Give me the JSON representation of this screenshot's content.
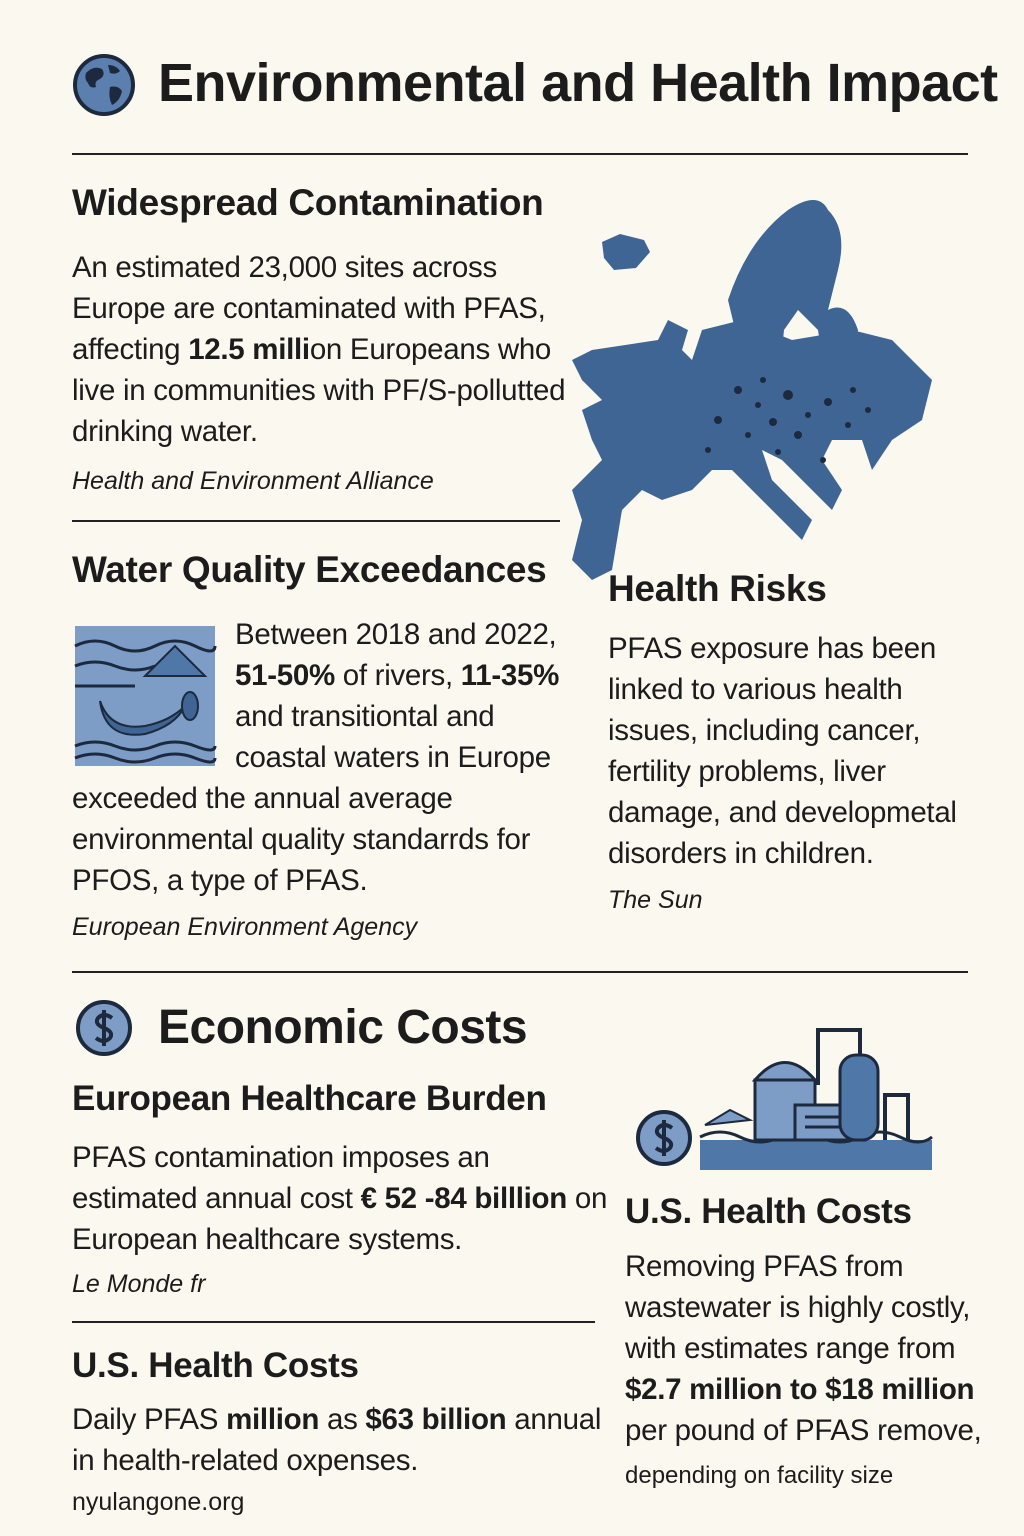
{
  "header": {
    "title": "Environmental and Health Impact"
  },
  "contamination": {
    "title": "Widespread Contamination",
    "body": [
      {
        "text": "An estimated 23,000 sites across Europe are contaminated with PFAS, affecting ",
        "bold": false
      },
      {
        "text": "12.5 milli",
        "bold": true
      },
      {
        "text": "on Europeans who live in communities with PF/S-pollutted drinking water.",
        "bold": false
      }
    ],
    "source": "Health and Environment Alliance"
  },
  "water": {
    "title": "Water Quality Exceedances",
    "body": [
      {
        "text": "Between 2018 and 2022, ",
        "bold": false
      },
      {
        "text": "51-50%",
        "bold": true
      },
      {
        "text": " of rivers, ",
        "bold": false
      },
      {
        "text": "11-35%",
        "bold": true
      },
      {
        "text": " and transitiontal and coastal waters in Europe exceeded the annual average environmental quality standarrds for PFOS, a type of PFAS.",
        "bold": false
      }
    ],
    "source": "European Environment Agency"
  },
  "health": {
    "title": "Health Risks",
    "body": [
      {
        "text": "PFAS exposure has been linked to various health issues, including cancer, fertility problems, liver damage, and developmetal disorders in children.",
        "bold": false
      }
    ],
    "source": "The Sun"
  },
  "economic": {
    "title": "Economic Costs"
  },
  "eu_burden": {
    "title": "European Healthcare Burden",
    "body": [
      {
        "text": "PFAS contamination imposes an estimated annual cost ",
        "bold": false
      },
      {
        "text": "€ 52 -84 billlion",
        "bold": true
      },
      {
        "text": " on European healthcare systems.",
        "bold": false
      }
    ],
    "source": "Le Monde fr"
  },
  "us_costs": {
    "title": "U.S. Health Costs",
    "body": [
      {
        "text": "Daily PFAS ",
        "bold": false
      },
      {
        "text": "million",
        "bold": true
      },
      {
        "text": " as ",
        "bold": false
      },
      {
        "text": "$63 billion",
        "bold": true
      },
      {
        "text": " annual in health-related oxpenses.",
        "bold": false
      }
    ],
    "source": "nyulangone.org"
  },
  "us_removal": {
    "title": "U.S. Health Costs",
    "body": [
      {
        "text": "Removing PFAS from wastewater is highly costly, with estimates range from ",
        "bold": false
      },
      {
        "text": "$2.7 million to $18 million",
        "bold": true
      },
      {
        "text": " per pound of PFAS remove,",
        "bold": false
      }
    ],
    "source": "depending on facility size"
  }
}
